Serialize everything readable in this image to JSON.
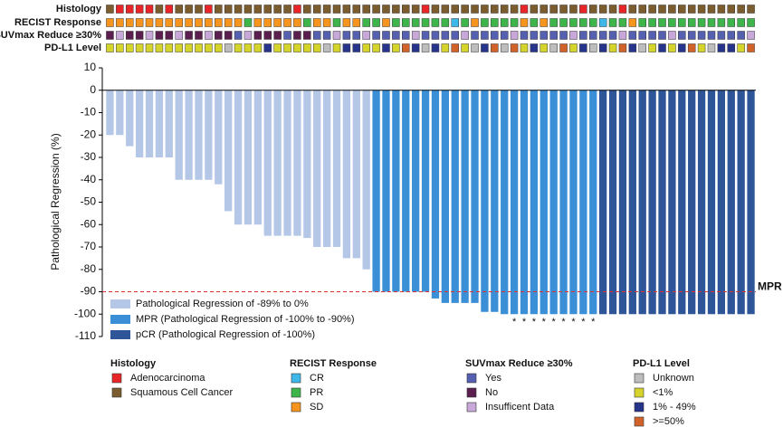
{
  "chart_data": {
    "type": "bar",
    "y_label": "Pathological Regression (%)",
    "ylim": [
      -110,
      10
    ],
    "yticks": [
      10,
      0,
      -10,
      -20,
      -30,
      -40,
      -50,
      -60,
      -70,
      -80,
      -90,
      -100,
      -110
    ],
    "series": [
      {
        "name": "Pathological Regression of -89% to 0%",
        "color": "#b4c7e7",
        "values": [
          -20,
          -20,
          -25,
          -30,
          -30,
          -30,
          -30,
          -40,
          -40,
          -40,
          -40,
          -42,
          -54,
          -60,
          -60,
          -60,
          -65,
          -65,
          -65,
          -65,
          -66,
          -70,
          -70,
          -70,
          -75,
          -75,
          -80
        ]
      },
      {
        "name": "MPR (Pathological Regression of -100% to -90%)",
        "color": "#3a8fd6",
        "values": [
          -90,
          -90,
          -90,
          -90,
          -90,
          -90,
          -93,
          -95,
          -95,
          -95,
          -95,
          -99,
          -99,
          -100,
          -100,
          -100,
          -100,
          -100,
          -100,
          -100,
          -100,
          -100,
          -100
        ]
      },
      {
        "name": "pCR (Pathological Regression of -100%)",
        "color": "#2e5597",
        "values": [
          -100,
          -100,
          -100,
          -100,
          -100,
          -100,
          -100,
          -100,
          -100,
          -100,
          -100,
          -100,
          -100,
          -100,
          -100,
          -100
        ]
      }
    ],
    "reference": {
      "value": -90,
      "label": "MPR",
      "color": "#e03030"
    },
    "markers": {
      "label": "*",
      "series": 1,
      "bars": [
        14,
        15,
        16,
        17,
        18,
        19,
        20,
        21,
        22
      ]
    },
    "tracks": [
      {
        "name": "Histology",
        "items": [
          {
            "label": "Adenocarcinoma",
            "color": "#e8262a"
          },
          {
            "label": "Squamous Cell Cancer",
            "color": "#7a5c2e"
          }
        ],
        "values": [
          1,
          0,
          0,
          0,
          0,
          1,
          0,
          1,
          1,
          1,
          0,
          1,
          1,
          1,
          1,
          1,
          1,
          1,
          1,
          0,
          1,
          1,
          1,
          1,
          1,
          1,
          1,
          1,
          1,
          1,
          1,
          1,
          0,
          1,
          1,
          1,
          1,
          1,
          1,
          1,
          1,
          1,
          0,
          1,
          1,
          1,
          1,
          1,
          0,
          1,
          1,
          1,
          0,
          1,
          1,
          1,
          1,
          1,
          1,
          1,
          1,
          1,
          1,
          1,
          1,
          1
        ]
      },
      {
        "name": "RECIST Response",
        "items": [
          {
            "label": "CR",
            "color": "#3db8e8"
          },
          {
            "label": "PR",
            "color": "#3db54a"
          },
          {
            "label": "SD",
            "color": "#f7941d"
          }
        ],
        "values": [
          2,
          2,
          2,
          2,
          2,
          2,
          2,
          2,
          2,
          2,
          2,
          2,
          2,
          2,
          1,
          2,
          2,
          2,
          2,
          2,
          1,
          2,
          2,
          1,
          2,
          2,
          1,
          1,
          2,
          1,
          1,
          1,
          1,
          1,
          1,
          0,
          1,
          2,
          1,
          1,
          1,
          1,
          2,
          1,
          2,
          1,
          1,
          1,
          1,
          1,
          0,
          1,
          1,
          2,
          1,
          1,
          1,
          1,
          1,
          1,
          1,
          1,
          1,
          1,
          1,
          1
        ]
      },
      {
        "name": "SUVmax Reduce ≥30%",
        "items": [
          {
            "label": "Yes",
            "color": "#5560b0"
          },
          {
            "label": "No",
            "color": "#5a1f4e"
          },
          {
            "label": "Insufficent Data",
            "color": "#c8a8d8"
          }
        ],
        "values": [
          1,
          2,
          1,
          1,
          2,
          1,
          1,
          2,
          1,
          1,
          2,
          1,
          1,
          0,
          2,
          1,
          1,
          1,
          0,
          1,
          1,
          0,
          0,
          2,
          0,
          0,
          2,
          0,
          0,
          0,
          0,
          2,
          0,
          0,
          0,
          0,
          2,
          0,
          0,
          0,
          0,
          2,
          0,
          0,
          0,
          0,
          0,
          2,
          0,
          0,
          0,
          0,
          2,
          0,
          0,
          0,
          0,
          2,
          0,
          0,
          0,
          0,
          0,
          0,
          0,
          2
        ]
      },
      {
        "name": "PD-L1 Level",
        "items": [
          {
            "label": "Unknown",
            "color": "#bdbdbd"
          },
          {
            "label": "<1%",
            "color": "#d4d42a"
          },
          {
            "label": "1% - 49%",
            "color": "#27348b"
          },
          {
            "label": ">=50%",
            "color": "#d0622a"
          }
        ],
        "values": [
          1,
          1,
          1,
          1,
          1,
          1,
          1,
          1,
          1,
          1,
          1,
          1,
          0,
          1,
          1,
          1,
          2,
          1,
          1,
          1,
          1,
          1,
          0,
          1,
          2,
          2,
          1,
          1,
          2,
          1,
          3,
          2,
          0,
          2,
          1,
          3,
          1,
          0,
          2,
          3,
          0,
          3,
          1,
          2,
          1,
          0,
          3,
          1,
          2,
          0,
          2,
          1,
          3,
          2,
          0,
          1,
          2,
          1,
          2,
          3,
          1,
          0,
          2,
          2,
          1,
          3
        ]
      }
    ]
  }
}
